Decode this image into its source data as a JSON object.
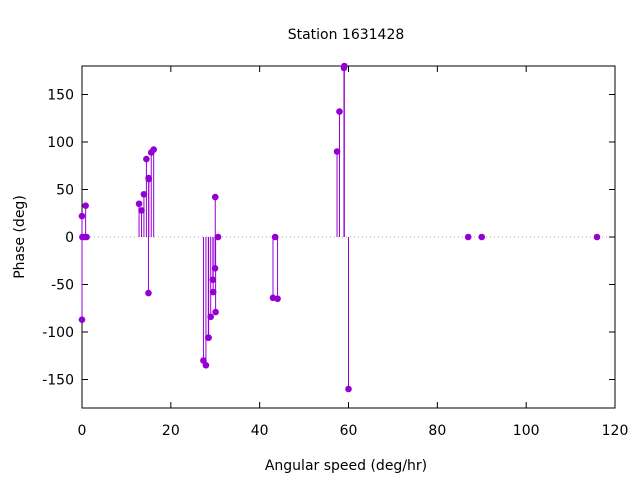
{
  "chart_data": {
    "type": "scatter",
    "style": "impulses-with-points",
    "title": "Station 1631428",
    "xlabel": "Angular speed (deg/hr)",
    "ylabel": "Phase (deg)",
    "xlim": [
      0,
      120
    ],
    "ylim": [
      -180,
      180
    ],
    "xticks": [
      0,
      20,
      40,
      60,
      80,
      100,
      120
    ],
    "yticks": [
      -150,
      -100,
      -50,
      0,
      50,
      100,
      150
    ],
    "xtick_labels": [
      "0",
      "20",
      "40",
      "60",
      "80",
      "100",
      "120"
    ],
    "ytick_labels": [
      "-150",
      "-100",
      "-50",
      "0",
      "50",
      "100",
      "150"
    ],
    "grid": false,
    "zero_line": "dotted",
    "series": [
      {
        "color": "#9400d3",
        "points": [
          {
            "x": 0.0,
            "y": 22
          },
          {
            "x": 0.0,
            "y": -87
          },
          {
            "x": 0.08,
            "y": 0
          },
          {
            "x": 0.54,
            "y": 0
          },
          {
            "x": 0.82,
            "y": 33
          },
          {
            "x": 1.02,
            "y": 0
          },
          {
            "x": 12.85,
            "y": 35
          },
          {
            "x": 13.4,
            "y": 28
          },
          {
            "x": 13.94,
            "y": 45
          },
          {
            "x": 14.5,
            "y": 82
          },
          {
            "x": 14.96,
            "y": -59
          },
          {
            "x": 15.0,
            "y": 62
          },
          {
            "x": 15.04,
            "y": 61
          },
          {
            "x": 15.59,
            "y": 89
          },
          {
            "x": 16.14,
            "y": 92
          },
          {
            "x": 27.34,
            "y": -130
          },
          {
            "x": 27.9,
            "y": -135
          },
          {
            "x": 28.44,
            "y": -106
          },
          {
            "x": 28.51,
            "y": -106
          },
          {
            "x": 28.98,
            "y": -84
          },
          {
            "x": 29.46,
            "y": -45
          },
          {
            "x": 29.53,
            "y": -58
          },
          {
            "x": 29.96,
            "y": -33
          },
          {
            "x": 30.0,
            "y": 42
          },
          {
            "x": 30.08,
            "y": -79
          },
          {
            "x": 30.63,
            "y": 0
          },
          {
            "x": 43.0,
            "y": -64
          },
          {
            "x": 43.48,
            "y": 0
          },
          {
            "x": 44.03,
            "y": -65
          },
          {
            "x": 57.42,
            "y": 90
          },
          {
            "x": 57.97,
            "y": 132
          },
          {
            "x": 58.98,
            "y": 178
          },
          {
            "x": 59.07,
            "y": 181
          },
          {
            "x": 60.0,
            "y": -160
          },
          {
            "x": 86.95,
            "y": 0
          },
          {
            "x": 90.0,
            "y": 0
          },
          {
            "x": 115.94,
            "y": 0
          }
        ]
      }
    ]
  }
}
